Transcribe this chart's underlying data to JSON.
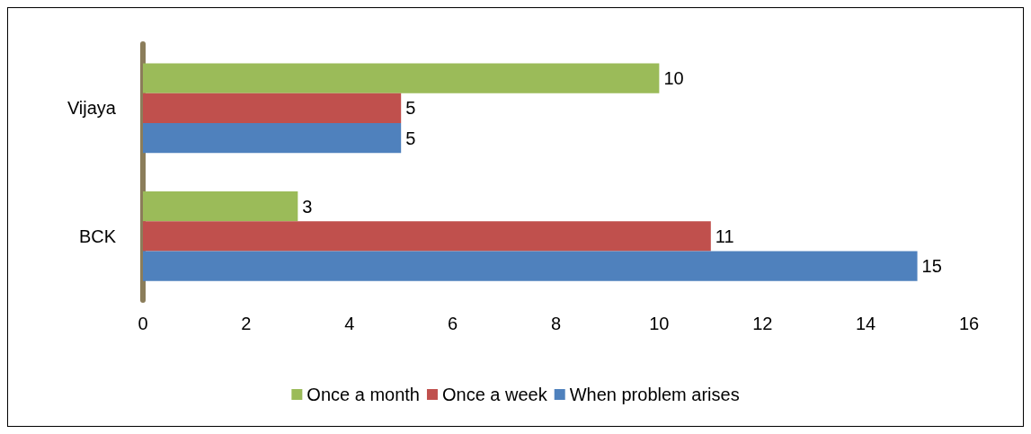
{
  "chart_data": {
    "type": "bar",
    "orientation": "horizontal",
    "categories": [
      "Vijaya",
      "BCK"
    ],
    "series": [
      {
        "name": "Once a month",
        "color": "#9bbb59",
        "values": [
          10,
          3
        ]
      },
      {
        "name": "Once a week",
        "color": "#c0504d",
        "values": [
          5,
          11
        ]
      },
      {
        "name": "When problem arises",
        "color": "#4f81bd",
        "values": [
          5,
          15
        ]
      }
    ],
    "xlim": [
      0,
      16
    ],
    "xticks": [
      0,
      2,
      4,
      6,
      8,
      10,
      12,
      14,
      16
    ],
    "data_labels": true,
    "legend": "bottom",
    "grid": false
  }
}
